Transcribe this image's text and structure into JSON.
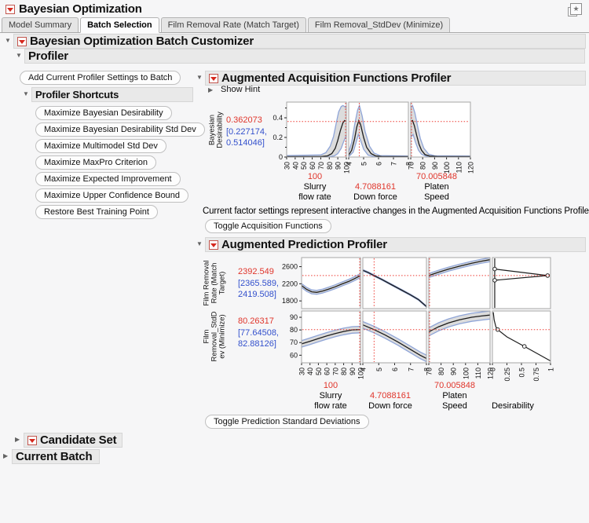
{
  "colors": {
    "red": "#e0352b",
    "blue": "#3350cc",
    "crosshair": "#ee3b33",
    "band_blue": "#8fa5d8",
    "band_fill": "#dcdcdc",
    "line_black": "#1c1c1c"
  },
  "window": {
    "title": "Bayesian Optimization"
  },
  "tabs": [
    {
      "label": "Model Summary",
      "active": false
    },
    {
      "label": "Batch Selection",
      "active": true
    },
    {
      "label": "Film Removal Rate (Match Target)",
      "active": false
    },
    {
      "label": "Film Removal_StdDev (Minimize)",
      "active": false
    }
  ],
  "outlines": {
    "customizer": "Bayesian Optimization Batch Customizer",
    "profiler": "Profiler",
    "acquisition": "Augmented Acquisition Functions Profiler",
    "prediction": "Augmented Prediction Profiler",
    "candidate_set": "Candidate Set",
    "current_batch": "Current Batch"
  },
  "left_panel": {
    "add_button": "Add Current Profiler Settings to Batch",
    "shortcuts_title": "Profiler Shortcuts",
    "shortcuts": [
      "Maximize Bayesian Desirability",
      "Maximize Bayesian Desirability Std Dev",
      "Maximize Multimodel Std Dev",
      "Maximize MaxPro Criterion",
      "Maximize Expected Improvement",
      "Maximize Upper Confidence Bound",
      "Restore Best Training Point"
    ]
  },
  "acquisition": {
    "show_hint": "Show Hint",
    "y_label_lines": [
      "Bayesian",
      "Desirability"
    ],
    "value": "0.362073",
    "ci_line1": "[0.227174,",
    "ci_line2": "0.514046]",
    "note": "Current factor settings represent interactive changes in the Augmented Acquisition Functions Profiler.",
    "toggle_button": "Toggle Acquisition Functions",
    "factors": [
      {
        "value": "100",
        "name1": "Slurry",
        "name2": "flow rate"
      },
      {
        "value": "4.7088161",
        "name1": "Down force",
        "name2": ""
      },
      {
        "value": "70.005848",
        "name1": "Platen",
        "name2": "Speed"
      }
    ]
  },
  "prediction": {
    "rows": [
      {
        "label_lines": [
          "Film Removal",
          "Rate (Match",
          "Target)"
        ],
        "value": "2392.549",
        "ci_line1": "[2365.589,",
        "ci_line2": "2419.508]"
      },
      {
        "label_lines": [
          "Film",
          "Removal_StdD",
          "ev (Minimize)"
        ],
        "value": "80.26317",
        "ci_line1": "[77.64508,",
        "ci_line2": "82.88126]"
      }
    ],
    "toggle_button": "Toggle Prediction Standard Deviations",
    "factors": [
      {
        "value": "100",
        "name1": "Slurry",
        "name2": "flow rate"
      },
      {
        "value": "4.7088161",
        "name1": "Down force",
        "name2": ""
      },
      {
        "value": "70.005848",
        "name1": "Platen",
        "name2": "Speed"
      },
      {
        "value": "",
        "name1": "Desirability",
        "name2": ""
      }
    ]
  },
  "chart_data": {
    "acquisition": {
      "type": "line",
      "y_label": "Bayesian Desirability",
      "y_domain": [
        0,
        0.56
      ],
      "y_ticks": [
        0,
        0.2,
        0.4
      ],
      "y_minor": [
        0.1,
        0.3,
        0.5
      ],
      "hline": 0.362073,
      "panels": [
        {
          "x_label": "Slurry flow rate",
          "x_domain": [
            30,
            100
          ],
          "x_ticks": [
            30,
            40,
            50,
            60,
            70,
            80,
            90,
            100
          ],
          "vline": 100,
          "line": [
            [
              30,
              0.005
            ],
            [
              70,
              0.005
            ],
            [
              78,
              0.012
            ],
            [
              83,
              0.035
            ],
            [
              87,
              0.09
            ],
            [
              90,
              0.17
            ],
            [
              93,
              0.27
            ],
            [
              96,
              0.35
            ],
            [
              98,
              0.372
            ],
            [
              100,
              0.362
            ]
          ],
          "upper": [
            [
              30,
              0.015
            ],
            [
              70,
              0.022
            ],
            [
              76,
              0.045
            ],
            [
              81,
              0.11
            ],
            [
              85,
              0.21
            ],
            [
              88,
              0.34
            ],
            [
              91,
              0.46
            ],
            [
              94,
              0.515
            ],
            [
              96,
              0.525
            ],
            [
              98,
              0.515
            ],
            [
              100,
              0.5
            ]
          ],
          "lower": [
            [
              30,
              0.001
            ],
            [
              80,
              0.004
            ],
            [
              86,
              0.012
            ],
            [
              90,
              0.035
            ],
            [
              94,
              0.09
            ],
            [
              97,
              0.16
            ],
            [
              100,
              0.22
            ]
          ]
        },
        {
          "x_label": "Down force",
          "x_domain": [
            4,
            8
          ],
          "x_ticks": [
            4,
            5,
            6,
            7,
            8
          ],
          "vline": 4.7088161,
          "line": [
            [
              4,
              0.02
            ],
            [
              4.2,
              0.07
            ],
            [
              4.4,
              0.19
            ],
            [
              4.55,
              0.31
            ],
            [
              4.68,
              0.372
            ],
            [
              4.8,
              0.33
            ],
            [
              5,
              0.2
            ],
            [
              5.2,
              0.1
            ],
            [
              5.5,
              0.035
            ],
            [
              5.8,
              0.012
            ],
            [
              6.2,
              0.006
            ],
            [
              8,
              0.005
            ]
          ],
          "upper": [
            [
              4,
              0.05
            ],
            [
              4.2,
              0.15
            ],
            [
              4.4,
              0.33
            ],
            [
              4.6,
              0.48
            ],
            [
              4.72,
              0.525
            ],
            [
              4.9,
              0.42
            ],
            [
              5.1,
              0.26
            ],
            [
              5.4,
              0.11
            ],
            [
              5.7,
              0.04
            ],
            [
              6.1,
              0.015
            ],
            [
              8,
              0.01
            ]
          ],
          "lower": [
            [
              4,
              0.005
            ],
            [
              4.3,
              0.05
            ],
            [
              4.5,
              0.15
            ],
            [
              4.65,
              0.23
            ],
            [
              4.8,
              0.17
            ],
            [
              5,
              0.08
            ],
            [
              5.3,
              0.02
            ],
            [
              5.7,
              0.005
            ],
            [
              8,
              0.001
            ]
          ]
        },
        {
          "x_label": "Platen Speed",
          "x_domain": [
            70,
            120
          ],
          "x_ticks": [
            70,
            80,
            90,
            100,
            110,
            120
          ],
          "vline": 70.005848,
          "line": [
            [
              70,
              0.36
            ],
            [
              71.5,
              0.372
            ],
            [
              73,
              0.32
            ],
            [
              75,
              0.22
            ],
            [
              77,
              0.13
            ],
            [
              79,
              0.07
            ],
            [
              82,
              0.025
            ],
            [
              86,
              0.01
            ],
            [
              92,
              0.006
            ],
            [
              120,
              0.005
            ]
          ],
          "upper": [
            [
              70,
              0.5
            ],
            [
              71.5,
              0.525
            ],
            [
              73.5,
              0.45
            ],
            [
              76,
              0.3
            ],
            [
              78,
              0.19
            ],
            [
              81,
              0.09
            ],
            [
              85,
              0.03
            ],
            [
              90,
              0.013
            ],
            [
              120,
              0.01
            ]
          ],
          "lower": [
            [
              70,
              0.2
            ],
            [
              72,
              0.23
            ],
            [
              74,
              0.15
            ],
            [
              76.5,
              0.07
            ],
            [
              79,
              0.03
            ],
            [
              83,
              0.008
            ],
            [
              120,
              0.001
            ]
          ]
        }
      ]
    },
    "prediction": {
      "type": "line",
      "rows": [
        {
          "label": "Film Removal Rate (Match Target)",
          "y_domain": [
            1620,
            2812
          ],
          "y_ticks": [
            1800,
            2200,
            2600
          ],
          "hline": 2392.549
        },
        {
          "label": "Film Removal_StdDev (Minimize)",
          "y_domain": [
            54,
            95
          ],
          "y_ticks": [
            60,
            70,
            80,
            90
          ],
          "hline": 80.26317
        }
      ],
      "cols": [
        {
          "x_label": "Slurry flow rate",
          "x_domain": [
            30,
            100
          ],
          "x_ticks": [
            30,
            40,
            50,
            60,
            70,
            80,
            90,
            100
          ],
          "vline": 100
        },
        {
          "x_label": "Down force",
          "x_domain": [
            4,
            8
          ],
          "x_ticks": [
            4,
            5,
            6,
            7,
            8
          ],
          "vline": 4.7088161
        },
        {
          "x_label": "Platen Speed",
          "x_domain": [
            70,
            120
          ],
          "x_ticks": [
            70,
            80,
            90,
            100,
            110,
            120
          ],
          "vline": 70.005848
        },
        {
          "x_label": "Desirability",
          "x_domain": [
            0,
            1
          ],
          "x_ticks": [
            0,
            0.25,
            0.5,
            0.75,
            1
          ],
          "vline": null
        }
      ],
      "cells": [
        [
          {
            "line": [
              [
                30,
                2160
              ],
              [
                36,
                2070
              ],
              [
                42,
                2012
              ],
              [
                48,
                2000
              ],
              [
                55,
                2030
              ],
              [
                62,
                2075
              ],
              [
                70,
                2130
              ],
              [
                78,
                2195
              ],
              [
                86,
                2255
              ],
              [
                93,
                2320
              ],
              [
                100,
                2392
              ]
            ],
            "band": 45
          },
          {
            "line": [
              [
                4,
                2515
              ],
              [
                4.35,
                2460
              ],
              [
                4.7,
                2392
              ],
              [
                5.2,
                2300
              ],
              [
                5.8,
                2180
              ],
              [
                6.4,
                2060
              ],
              [
                7,
                1940
              ],
              [
                7.5,
                1830
              ],
              [
                8,
                1668
              ]
            ],
            "band": 14
          },
          {
            "line": [
              [
                70,
                2392
              ],
              [
                78,
                2470
              ],
              [
                86,
                2540
              ],
              [
                95,
                2610
              ],
              [
                105,
                2680
              ],
              [
                113,
                2728
              ],
              [
                120,
                2762
              ]
            ],
            "band": 46
          },
          {
            "desirability": {
              "spine": true,
              "vx": 0.04,
              "path": [
                [
                  0.04,
                  2545
                ],
                [
                  0.95,
                  2392
                ],
                [
                  0.04,
                  2282
                ]
              ],
              "markers": [
                [
                  0.04,
                  2545
                ],
                [
                  0.95,
                  2392
                ],
                [
                  0.04,
                  2282
                ]
              ]
            }
          }
        ],
        [
          {
            "line": [
              [
                30,
                69
              ],
              [
                40,
                71
              ],
              [
                50,
                73.2
              ],
              [
                60,
                75.3
              ],
              [
                70,
                77.2
              ],
              [
                80,
                78.8
              ],
              [
                90,
                80
              ],
              [
                100,
                80.3
              ]
            ],
            "band": 2.6
          },
          {
            "line": [
              [
                4,
                84
              ],
              [
                4.7,
                80.3
              ],
              [
                5.4,
                76
              ],
              [
                6.2,
                70.5
              ],
              [
                7,
                64.5
              ],
              [
                7.6,
                60
              ],
              [
                8,
                57.5
              ]
            ],
            "band": 2.6
          },
          {
            "line": [
              [
                70,
                78.5
              ],
              [
                78,
                82.5
              ],
              [
                86,
                85.5
              ],
              [
                95,
                88
              ],
              [
                105,
                90
              ],
              [
                113,
                91
              ],
              [
                120,
                91.8
              ]
            ],
            "band": 3.2
          },
          {
            "desirability": {
              "spine": false,
              "path": [
                [
                  0.015,
                  94
                ],
                [
                  0.03,
                  88
                ],
                [
                  0.06,
                  82.5
                ],
                [
                  0.09,
                  80.3
                ],
                [
                  0.25,
                  74.5
                ],
                [
                  0.55,
                  67
                ],
                [
                  1,
                  55.5
                ]
              ],
              "markers": [
                [
                  0.09,
                  80.3
                ],
                [
                  0.55,
                  67
                ]
              ]
            }
          }
        ]
      ]
    }
  }
}
